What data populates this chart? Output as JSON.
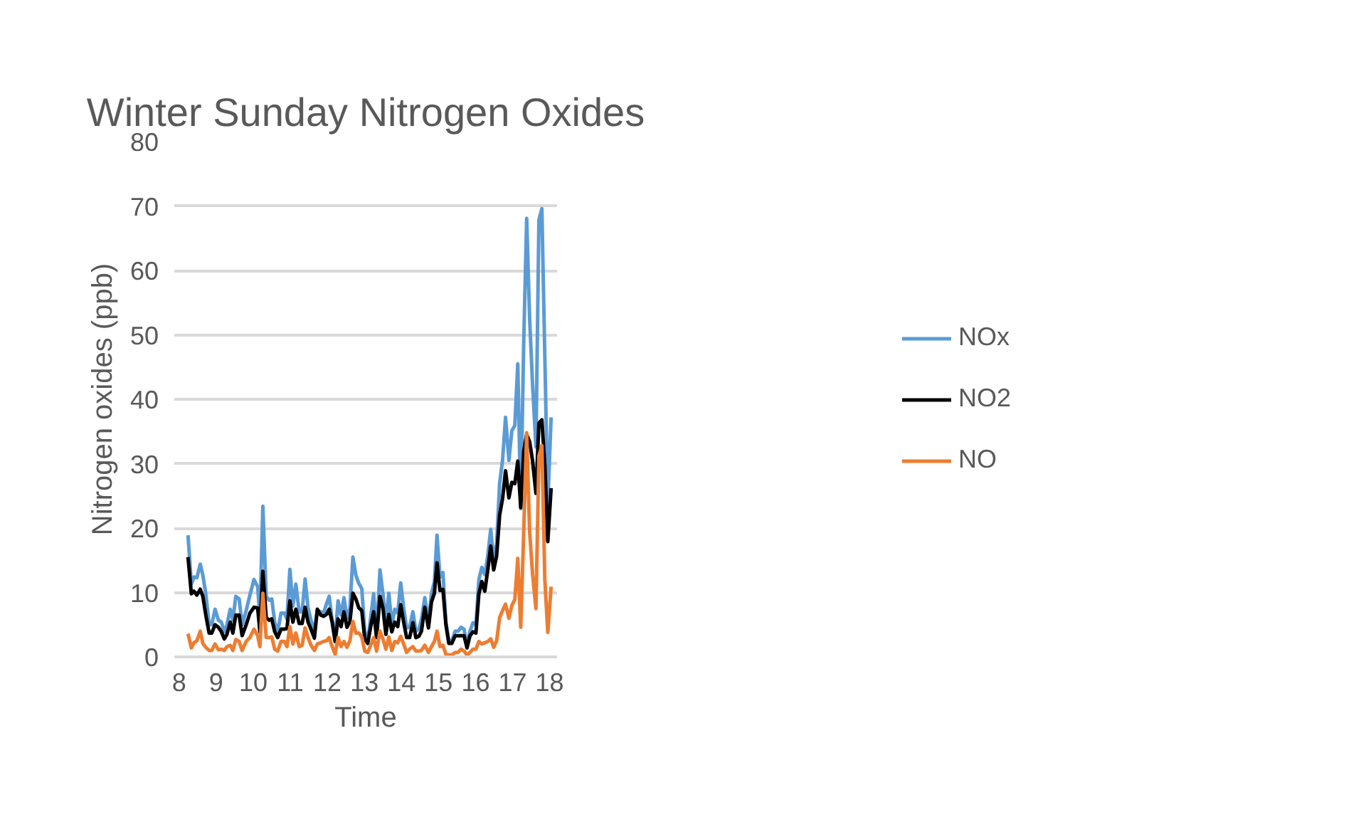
{
  "chart_data": {
    "type": "line",
    "title": "Winter Sunday Nitrogen Oxides",
    "xlabel": "Time",
    "ylabel": "Nitrogen oxides (ppb)",
    "x": [
      8.24,
      8.33,
      8.4,
      8.48,
      8.57,
      8.64,
      8.72,
      8.81,
      8.88,
      8.97,
      9.06,
      9.14,
      9.22,
      9.29,
      9.38,
      9.45,
      9.53,
      9.62,
      9.7,
      9.81,
      9.91,
      10.02,
      10.12,
      10.18,
      10.26,
      10.35,
      10.43,
      10.5,
      10.58,
      10.66,
      10.75,
      10.84,
      10.91,
      10.99,
      11.07,
      11.15,
      11.24,
      11.32,
      11.4,
      11.48,
      11.56,
      11.65,
      11.73,
      11.82,
      11.9,
      11.98,
      12.05,
      12.13,
      12.21,
      12.29,
      12.37,
      12.45,
      12.53,
      12.61,
      12.69,
      12.77,
      12.85,
      12.93,
      13.01,
      13.09,
      13.17,
      13.25,
      13.33,
      13.42,
      13.5,
      13.58,
      13.66,
      13.74,
      13.82,
      13.9,
      13.98,
      14.06,
      14.14,
      14.22,
      14.31,
      14.39,
      14.47,
      14.54,
      14.63,
      14.73,
      14.81,
      14.89,
      14.96,
      15.04,
      15.12,
      15.2,
      15.28,
      15.36,
      15.45,
      15.53,
      15.61,
      15.69,
      15.77,
      15.85,
      15.93,
      16.01,
      16.09,
      16.17,
      16.25,
      16.33,
      16.41,
      16.49,
      16.57,
      16.65,
      16.73,
      16.81,
      16.9,
      16.98,
      17.06,
      17.14,
      17.22,
      17.3,
      17.38,
      17.46,
      17.54,
      17.63,
      17.71,
      17.79,
      17.87,
      17.95,
      18.04
    ],
    "series": [
      {
        "name": "NOx",
        "color": "#5b9bd5",
        "values": [
          18.9,
          11.3,
          12.4,
          12.3,
          14.4,
          12.7,
          9.8,
          5.0,
          5.0,
          7.4,
          5.7,
          5.4,
          3.9,
          5.0,
          7.4,
          5.7,
          9.4,
          9.0,
          5.0,
          7.2,
          9.6,
          12.0,
          10.9,
          6.1,
          23.4,
          9.4,
          8.8,
          9.0,
          5.4,
          3.9,
          6.8,
          6.8,
          5.9,
          13.6,
          7.9,
          11.3,
          7.0,
          7.0,
          12.1,
          7.6,
          5.7,
          4.0,
          7.2,
          7.0,
          6.8,
          8.3,
          9.4,
          5.7,
          2.9,
          8.7,
          6.5,
          9.2,
          5.9,
          7.6,
          15.5,
          12.7,
          11.4,
          10.6,
          4.0,
          2.5,
          6.1,
          9.8,
          3.2,
          13.5,
          9.8,
          5.4,
          9.9,
          5.0,
          7.4,
          6.8,
          11.5,
          7.6,
          4.5,
          4.6,
          7.0,
          4.0,
          4.3,
          5.8,
          9.2,
          5.4,
          9.8,
          11.7,
          18.9,
          12.4,
          13.1,
          5.4,
          2.5,
          2.5,
          4.0,
          4.0,
          4.6,
          4.3,
          1.8,
          4.0,
          5.3,
          5.0,
          12.0,
          13.9,
          12.8,
          15.7,
          19.8,
          15.0,
          17.6,
          26.9,
          30.6,
          37.2,
          30.5,
          35.1,
          35.9,
          45.5,
          23.0,
          48.8,
          68.1,
          52.5,
          42.2,
          32.6,
          67.8,
          69.6,
          46.6,
          23.8,
          37.2
        ]
      },
      {
        "name": "NO2",
        "color": "#000000",
        "values": [
          15.5,
          9.8,
          10.2,
          9.6,
          10.5,
          9.4,
          6.5,
          3.7,
          3.7,
          5.0,
          4.6,
          3.9,
          2.8,
          3.5,
          5.4,
          3.7,
          6.5,
          6.5,
          3.3,
          5.0,
          6.8,
          7.7,
          7.6,
          3.9,
          13.3,
          6.1,
          5.7,
          5.9,
          3.9,
          3.0,
          4.3,
          4.3,
          4.4,
          8.7,
          5.4,
          7.4,
          5.2,
          5.2,
          7.7,
          5.4,
          4.3,
          2.9,
          7.4,
          6.5,
          6.3,
          6.6,
          7.4,
          5.4,
          2.4,
          5.9,
          4.7,
          7.0,
          4.6,
          5.5,
          9.9,
          9.0,
          7.6,
          7.2,
          2.8,
          2.1,
          4.7,
          7.0,
          3.0,
          9.4,
          7.6,
          3.5,
          6.6,
          3.9,
          5.4,
          4.7,
          8.1,
          5.4,
          3.0,
          3.0,
          5.3,
          3.0,
          3.2,
          4.0,
          7.7,
          4.5,
          8.5,
          9.9,
          14.6,
          10.3,
          10.5,
          5.0,
          2.1,
          2.1,
          3.3,
          3.3,
          3.3,
          3.3,
          1.4,
          3.3,
          3.9,
          3.7,
          9.8,
          11.7,
          10.2,
          13.5,
          17.2,
          13.5,
          15.7,
          22.0,
          24.6,
          28.9,
          24.7,
          27.1,
          26.9,
          30.4,
          23.2,
          31.9,
          34.5,
          33.4,
          30.4,
          25.4,
          36.3,
          36.8,
          29.7,
          17.9,
          26.2
        ]
      },
      {
        "name": "NO",
        "color": "#ed7d31",
        "values": [
          3.6,
          1.4,
          2.2,
          2.5,
          4.0,
          2.1,
          1.5,
          1.0,
          1.0,
          2.0,
          1.1,
          1.2,
          1.0,
          1.6,
          1.8,
          1.0,
          2.7,
          2.4,
          1.0,
          2.4,
          3.0,
          4.3,
          3.3,
          1.6,
          9.9,
          3.0,
          3.0,
          3.1,
          1.2,
          0.9,
          2.4,
          2.4,
          1.6,
          4.7,
          2.0,
          3.7,
          1.6,
          1.8,
          4.5,
          3.0,
          1.8,
          1.0,
          2.0,
          2.2,
          2.4,
          2.5,
          3.0,
          1.6,
          0.4,
          3.0,
          1.6,
          2.4,
          1.5,
          2.5,
          5.5,
          3.7,
          3.7,
          3.1,
          0.9,
          0.7,
          1.8,
          3.0,
          0.9,
          4.0,
          2.8,
          1.2,
          3.1,
          1.0,
          2.4,
          2.2,
          3.2,
          2.0,
          0.7,
          1.2,
          1.6,
          0.9,
          0.9,
          1.0,
          1.8,
          0.7,
          1.6,
          2.4,
          4.0,
          1.6,
          1.8,
          0.4,
          0.3,
          0.3,
          0.7,
          0.7,
          1.2,
          0.9,
          0.3,
          0.7,
          1.2,
          1.2,
          2.4,
          2.0,
          2.2,
          2.4,
          2.8,
          1.5,
          2.5,
          6.1,
          7.2,
          8.2,
          6.0,
          8.0,
          8.9,
          15.3,
          4.6,
          19.4,
          34.8,
          19.4,
          12.8,
          7.5,
          31.2,
          32.8,
          12.0,
          3.8,
          10.9
        ]
      }
    ],
    "xlim": [
      7.87,
      18.2
    ],
    "xticks": [
      8,
      9,
      10,
      11,
      12,
      13,
      14,
      15,
      16,
      17,
      18
    ],
    "ylim": [
      0,
      80
    ],
    "yticks": [
      0,
      10,
      20,
      30,
      40,
      50,
      60,
      70,
      80
    ],
    "grid": "y",
    "legend": "right",
    "marker": "none",
    "line_style": "solid"
  }
}
